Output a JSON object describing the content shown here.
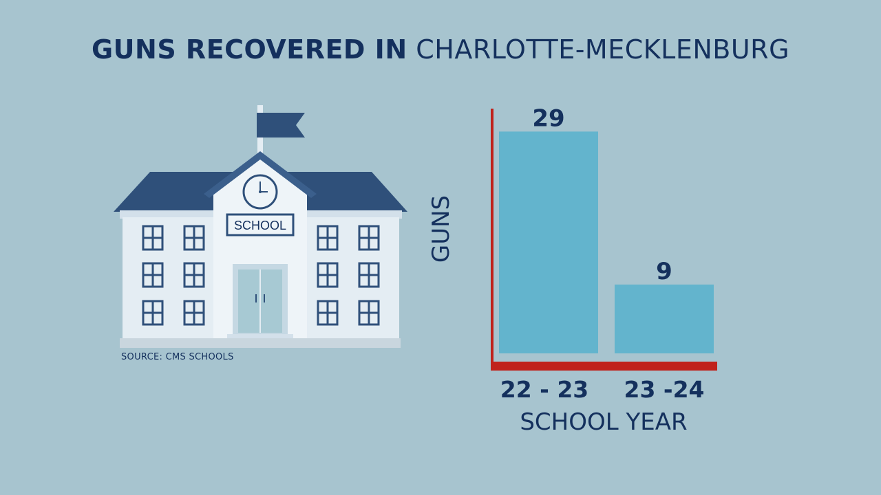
{
  "title": {
    "bold": "GUNS RECOVERED IN",
    "light": "CHARLOTTE-MECKLENBURG"
  },
  "illustration": {
    "sign": "SCHOOL"
  },
  "source": "SOURCE: CMS SCHOOLS",
  "colors": {
    "background": "#a7c4cf",
    "navy": "#14305d",
    "bar": "#63b4cd",
    "axis": "#c0221c"
  },
  "chart_data": {
    "type": "bar",
    "categories": [
      "22 - 23",
      "23 -24"
    ],
    "values": [
      29,
      9
    ],
    "data_labels": [
      "29",
      "9"
    ],
    "xlabel": "SCHOOL YEAR",
    "ylabel": "GUNS",
    "ylim": [
      0,
      32
    ],
    "grid": false
  }
}
